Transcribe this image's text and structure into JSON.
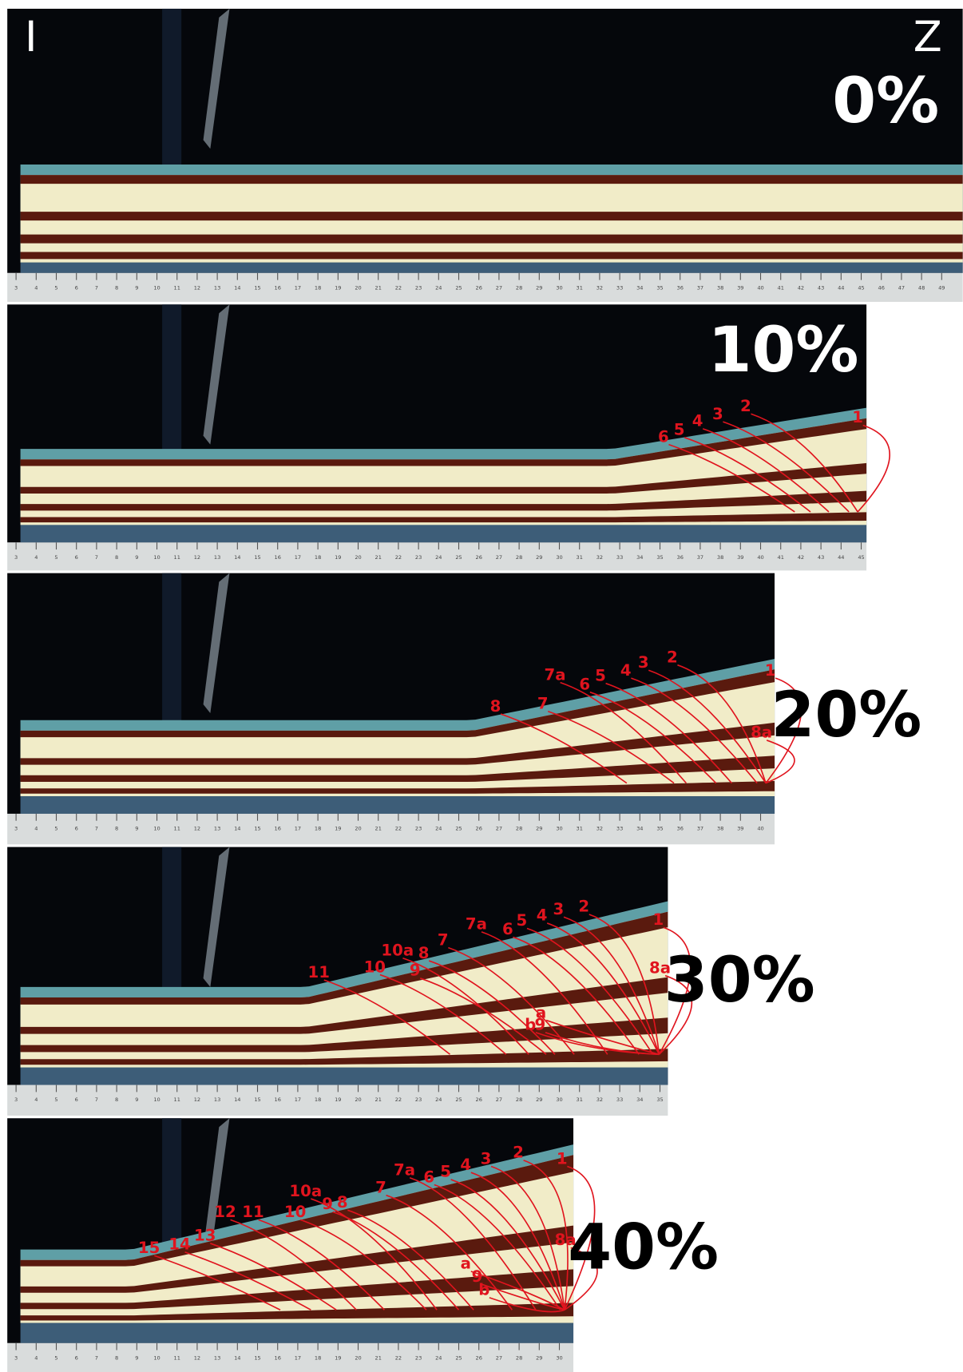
{
  "corner_left": "I",
  "corner_right": "Z",
  "panels": [
    {
      "label": "0%",
      "ruler": [
        3,
        4,
        5,
        6,
        7,
        8,
        9,
        10,
        11,
        12,
        13,
        14,
        15,
        16,
        17,
        18,
        19,
        20,
        21,
        22,
        23,
        24,
        25,
        26,
        27,
        28,
        29,
        30,
        31,
        32,
        33,
        34,
        35,
        36,
        37,
        38,
        39,
        40,
        41,
        42,
        43,
        44,
        45,
        46,
        47,
        48,
        49
      ],
      "faults": []
    },
    {
      "label": "10%",
      "ruler": [
        3,
        4,
        5,
        6,
        7,
        8,
        9,
        10,
        11,
        12,
        13,
        14,
        15,
        16,
        17,
        18,
        19,
        20,
        21,
        22,
        23,
        24,
        25,
        26,
        27,
        28,
        29,
        30,
        31,
        32,
        33,
        34,
        35,
        36,
        37,
        38,
        39,
        40,
        41,
        42,
        43,
        44,
        45
      ],
      "faults": [
        "6",
        "5",
        "4",
        "3",
        "2",
        "1"
      ]
    },
    {
      "label": "20%",
      "ruler": [
        3,
        4,
        5,
        6,
        7,
        8,
        9,
        10,
        11,
        12,
        13,
        14,
        15,
        16,
        17,
        18,
        19,
        20,
        21,
        22,
        23,
        24,
        25,
        26,
        27,
        28,
        29,
        30,
        31,
        32,
        33,
        34,
        35,
        36,
        37,
        38,
        39,
        40
      ],
      "faults": [
        "8",
        "7",
        "7a",
        "6",
        "5",
        "4",
        "3",
        "2",
        "1",
        "8a"
      ]
    },
    {
      "label": "30%",
      "ruler": [
        3,
        4,
        5,
        6,
        7,
        8,
        9,
        10,
        11,
        12,
        13,
        14,
        15,
        16,
        17,
        18,
        19,
        20,
        21,
        22,
        23,
        24,
        25,
        26,
        27,
        28,
        29,
        30,
        31,
        32,
        33,
        34,
        35
      ],
      "faults": [
        "11",
        "10",
        "10a",
        "8",
        "9",
        "7",
        "7a",
        "6",
        "5",
        "4",
        "3",
        "2",
        "1",
        "8a",
        "a",
        "b",
        "9"
      ]
    },
    {
      "label": "40%",
      "ruler": [
        3,
        4,
        5,
        6,
        7,
        8,
        9,
        10,
        11,
        12,
        13,
        14,
        15,
        16,
        17,
        18,
        19,
        20,
        21,
        22,
        23,
        24,
        25,
        26,
        27,
        28,
        29,
        30
      ],
      "faults": [
        "15",
        "14",
        "13",
        "12",
        "11",
        "10",
        "10a",
        "9",
        "8",
        "7",
        "7a",
        "6",
        "5",
        "4",
        "3",
        "2",
        "1",
        "8a",
        "a",
        "9",
        "b"
      ]
    }
  ]
}
